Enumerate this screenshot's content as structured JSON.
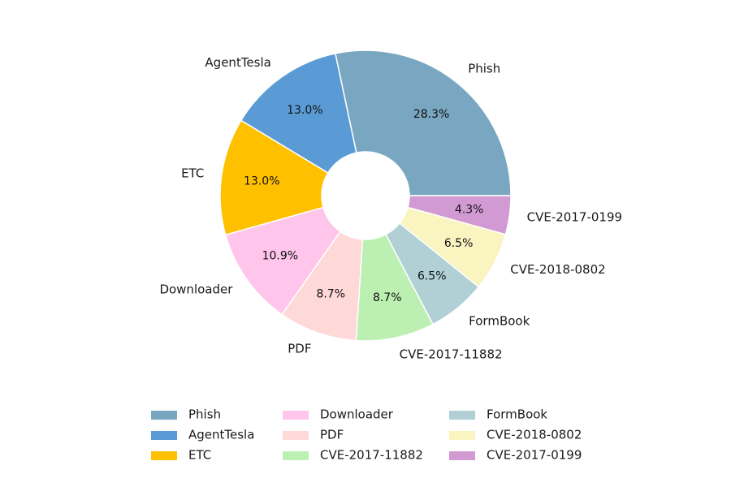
{
  "chart_data": {
    "type": "pie",
    "donut": true,
    "start_angle_deg": 0,
    "direction": "counterclockwise",
    "slices": [
      {
        "label": "Phish",
        "value": 28.3,
        "pct_label": "28.3%",
        "color": "#79a6c0"
      },
      {
        "label": "AgentTesla",
        "value": 13.0,
        "pct_label": "13.0%",
        "color": "#5a9bd5"
      },
      {
        "label": "ETC",
        "value": 13.0,
        "pct_label": "13.0%",
        "color": "#ffc000"
      },
      {
        "label": "Downloader",
        "value": 10.9,
        "pct_label": "10.9%",
        "color": "#ffc5ea"
      },
      {
        "label": "PDF",
        "value": 8.7,
        "pct_label": "8.7%",
        "color": "#ffd8d8"
      },
      {
        "label": "CVE-2017-11882",
        "value": 8.7,
        "pct_label": "8.7%",
        "color": "#bbf0b2"
      },
      {
        "label": "FormBook",
        "value": 6.5,
        "pct_label": "6.5%",
        "color": "#b0d0d6"
      },
      {
        "label": "CVE-2018-0802",
        "value": 6.5,
        "pct_label": "6.5%",
        "color": "#f9f4c0"
      },
      {
        "label": "CVE-2017-0199",
        "value": 4.3,
        "pct_label": "4.3%",
        "color": "#d29ad2"
      }
    ],
    "legend": {
      "placement": "bottom",
      "columns": 3,
      "entries": [
        "Phish",
        "AgentTesla",
        "ETC",
        "Downloader",
        "PDF",
        "CVE-2017-11882",
        "FormBook",
        "CVE-2018-0802",
        "CVE-2017-0199"
      ]
    }
  }
}
